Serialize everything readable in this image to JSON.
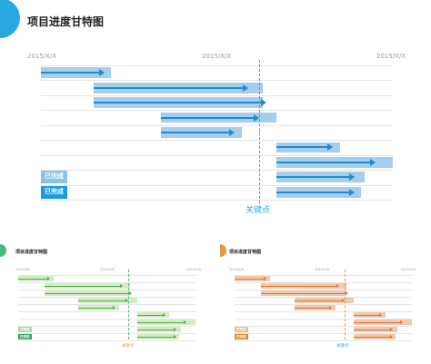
{
  "main": {
    "title": "项目进度甘特图",
    "dates": [
      "2015/X/X",
      "2015/X/X",
      "2015/X/X"
    ],
    "legend": [
      "已完成",
      "已完成"
    ],
    "key_label": "关键点",
    "accent": "#29a8e0",
    "bar_light": "#a7cdec",
    "arrow_color": "#1f8bd0",
    "legend_light": "#8cc2ea",
    "legend_dark": "#1a9be0"
  },
  "thumb_green": {
    "title": "项目进度甘特图",
    "dates": [
      "2015/X/X",
      "2015/X/X",
      "2015/X/X"
    ],
    "legend": [
      "已完成",
      "已完成"
    ],
    "key_label": "关键点",
    "accent": "#4db87a",
    "bar_light": "#d4ecc4",
    "arrow_color": "#4caf50",
    "legend_light": "#a8d8a0",
    "legend_dark": "#3aa36b"
  },
  "thumb_orange": {
    "title": "项目进度甘特图",
    "dates": [
      "2015/X/X",
      "2015/X/X",
      "2015/X/X"
    ],
    "legend": [
      "已完成",
      "已完成"
    ],
    "key_label": "关键点",
    "accent": "#e49a48",
    "bar_light": "#f0c8ac",
    "arrow_color": "#d9773a",
    "legend_light": "#efb98e",
    "legend_dark": "#e08a36"
  }
}
